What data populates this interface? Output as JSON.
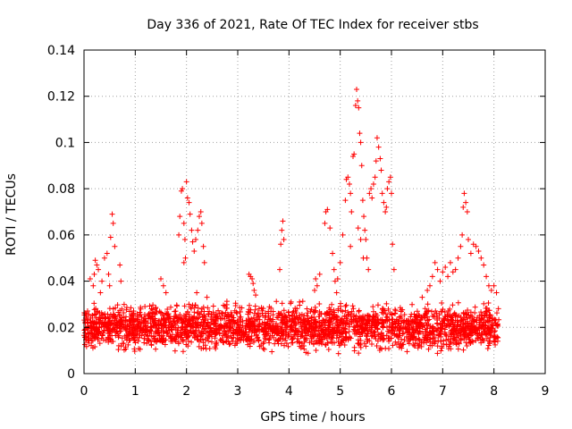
{
  "chart_data": {
    "type": "scatter",
    "title": "Day 336 of 2021, Rate Of TEC Index for receiver stbs",
    "xlabel": "GPS time / hours",
    "ylabel": "ROTI / TECUs",
    "xlim": [
      0,
      9
    ],
    "ylim": [
      0,
      0.14
    ],
    "x_ticks": [
      "0",
      "1",
      "2",
      "3",
      "4",
      "5",
      "6",
      "7",
      "8",
      "9"
    ],
    "y_ticks": [
      "0",
      "0.02",
      "0.04",
      "0.06",
      "0.08",
      "0.1",
      "0.12",
      "0.14"
    ],
    "grid": true,
    "marker": "+",
    "series": [
      {
        "name": "ROTI",
        "color": "#ff0000",
        "x_range": [
          0.0,
          8.1
        ],
        "baseline": [
          0.007,
          0.033
        ],
        "points": [
          {
            "x": 0.12,
            "y": 0.041
          },
          {
            "x": 0.18,
            "y": 0.038
          },
          {
            "x": 0.2,
            "y": 0.043
          },
          {
            "x": 0.22,
            "y": 0.049
          },
          {
            "x": 0.25,
            "y": 0.047
          },
          {
            "x": 0.28,
            "y": 0.045
          },
          {
            "x": 0.32,
            "y": 0.035
          },
          {
            "x": 0.35,
            "y": 0.04
          },
          {
            "x": 0.4,
            "y": 0.05
          },
          {
            "x": 0.45,
            "y": 0.052
          },
          {
            "x": 0.48,
            "y": 0.043
          },
          {
            "x": 0.5,
            "y": 0.038
          },
          {
            "x": 0.52,
            "y": 0.059
          },
          {
            "x": 0.55,
            "y": 0.069
          },
          {
            "x": 0.57,
            "y": 0.065
          },
          {
            "x": 0.6,
            "y": 0.055
          },
          {
            "x": 0.7,
            "y": 0.047
          },
          {
            "x": 0.72,
            "y": 0.04
          },
          {
            "x": 1.5,
            "y": 0.041
          },
          {
            "x": 1.55,
            "y": 0.038
          },
          {
            "x": 1.6,
            "y": 0.035
          },
          {
            "x": 1.85,
            "y": 0.06
          },
          {
            "x": 1.87,
            "y": 0.068
          },
          {
            "x": 1.9,
            "y": 0.079
          },
          {
            "x": 1.92,
            "y": 0.08
          },
          {
            "x": 1.95,
            "y": 0.065
          },
          {
            "x": 1.97,
            "y": 0.058
          },
          {
            "x": 2.0,
            "y": 0.083
          },
          {
            "x": 2.02,
            "y": 0.076
          },
          {
            "x": 2.05,
            "y": 0.074
          },
          {
            "x": 2.07,
            "y": 0.069
          },
          {
            "x": 2.1,
            "y": 0.062
          },
          {
            "x": 2.12,
            "y": 0.057
          },
          {
            "x": 1.95,
            "y": 0.048
          },
          {
            "x": 1.98,
            "y": 0.05
          },
          {
            "x": 2.15,
            "y": 0.053
          },
          {
            "x": 2.18,
            "y": 0.058
          },
          {
            "x": 2.22,
            "y": 0.062
          },
          {
            "x": 2.25,
            "y": 0.068
          },
          {
            "x": 2.28,
            "y": 0.07
          },
          {
            "x": 2.3,
            "y": 0.065
          },
          {
            "x": 2.33,
            "y": 0.055
          },
          {
            "x": 2.35,
            "y": 0.048
          },
          {
            "x": 2.2,
            "y": 0.035
          },
          {
            "x": 2.4,
            "y": 0.033
          },
          {
            "x": 3.22,
            "y": 0.043
          },
          {
            "x": 3.25,
            "y": 0.042
          },
          {
            "x": 3.28,
            "y": 0.041
          },
          {
            "x": 3.3,
            "y": 0.039
          },
          {
            "x": 3.32,
            "y": 0.036
          },
          {
            "x": 3.35,
            "y": 0.034
          },
          {
            "x": 3.82,
            "y": 0.045
          },
          {
            "x": 3.84,
            "y": 0.056
          },
          {
            "x": 3.86,
            "y": 0.062
          },
          {
            "x": 3.88,
            "y": 0.066
          },
          {
            "x": 3.9,
            "y": 0.058
          },
          {
            "x": 4.5,
            "y": 0.036
          },
          {
            "x": 4.52,
            "y": 0.041
          },
          {
            "x": 4.55,
            "y": 0.038
          },
          {
            "x": 4.6,
            "y": 0.043
          },
          {
            "x": 4.7,
            "y": 0.065
          },
          {
            "x": 4.72,
            "y": 0.07
          },
          {
            "x": 4.75,
            "y": 0.071
          },
          {
            "x": 4.8,
            "y": 0.063
          },
          {
            "x": 4.85,
            "y": 0.052
          },
          {
            "x": 4.88,
            "y": 0.045
          },
          {
            "x": 4.9,
            "y": 0.04
          },
          {
            "x": 4.93,
            "y": 0.035
          },
          {
            "x": 4.95,
            "y": 0.041
          },
          {
            "x": 5.0,
            "y": 0.048
          },
          {
            "x": 5.05,
            "y": 0.06
          },
          {
            "x": 5.1,
            "y": 0.075
          },
          {
            "x": 5.12,
            "y": 0.084
          },
          {
            "x": 5.15,
            "y": 0.085
          },
          {
            "x": 5.18,
            "y": 0.082
          },
          {
            "x": 5.2,
            "y": 0.078
          },
          {
            "x": 5.22,
            "y": 0.07
          },
          {
            "x": 5.25,
            "y": 0.094
          },
          {
            "x": 5.27,
            "y": 0.095
          },
          {
            "x": 5.3,
            "y": 0.116
          },
          {
            "x": 5.32,
            "y": 0.123
          },
          {
            "x": 5.34,
            "y": 0.118
          },
          {
            "x": 5.36,
            "y": 0.115
          },
          {
            "x": 5.38,
            "y": 0.104
          },
          {
            "x": 5.4,
            "y": 0.1
          },
          {
            "x": 5.42,
            "y": 0.09
          },
          {
            "x": 5.44,
            "y": 0.075
          },
          {
            "x": 5.46,
            "y": 0.068
          },
          {
            "x": 5.48,
            "y": 0.062
          },
          {
            "x": 5.5,
            "y": 0.058
          },
          {
            "x": 5.52,
            "y": 0.05
          },
          {
            "x": 5.55,
            "y": 0.045
          },
          {
            "x": 5.57,
            "y": 0.078
          },
          {
            "x": 5.6,
            "y": 0.08
          },
          {
            "x": 5.62,
            "y": 0.076
          },
          {
            "x": 5.65,
            "y": 0.082
          },
          {
            "x": 5.68,
            "y": 0.085
          },
          {
            "x": 5.7,
            "y": 0.092
          },
          {
            "x": 5.72,
            "y": 0.102
          },
          {
            "x": 5.75,
            "y": 0.098
          },
          {
            "x": 5.78,
            "y": 0.093
          },
          {
            "x": 5.8,
            "y": 0.088
          },
          {
            "x": 5.82,
            "y": 0.078
          },
          {
            "x": 5.85,
            "y": 0.074
          },
          {
            "x": 5.88,
            "y": 0.07
          },
          {
            "x": 5.9,
            "y": 0.072
          },
          {
            "x": 5.92,
            "y": 0.08
          },
          {
            "x": 5.95,
            "y": 0.083
          },
          {
            "x": 5.98,
            "y": 0.085
          },
          {
            "x": 6.0,
            "y": 0.078
          },
          {
            "x": 6.02,
            "y": 0.056
          },
          {
            "x": 6.05,
            "y": 0.045
          },
          {
            "x": 5.35,
            "y": 0.063
          },
          {
            "x": 5.4,
            "y": 0.058
          },
          {
            "x": 5.45,
            "y": 0.05
          },
          {
            "x": 5.2,
            "y": 0.055
          },
          {
            "x": 6.7,
            "y": 0.036
          },
          {
            "x": 6.75,
            "y": 0.038
          },
          {
            "x": 6.8,
            "y": 0.042
          },
          {
            "x": 6.85,
            "y": 0.048
          },
          {
            "x": 6.9,
            "y": 0.045
          },
          {
            "x": 6.95,
            "y": 0.04
          },
          {
            "x": 7.0,
            "y": 0.044
          },
          {
            "x": 7.05,
            "y": 0.046
          },
          {
            "x": 7.1,
            "y": 0.042
          },
          {
            "x": 7.15,
            "y": 0.048
          },
          {
            "x": 7.2,
            "y": 0.044
          },
          {
            "x": 7.25,
            "y": 0.045
          },
          {
            "x": 7.3,
            "y": 0.05
          },
          {
            "x": 7.35,
            "y": 0.055
          },
          {
            "x": 7.38,
            "y": 0.06
          },
          {
            "x": 7.4,
            "y": 0.072
          },
          {
            "x": 7.42,
            "y": 0.078
          },
          {
            "x": 7.45,
            "y": 0.074
          },
          {
            "x": 7.48,
            "y": 0.07
          },
          {
            "x": 7.5,
            "y": 0.058
          },
          {
            "x": 7.55,
            "y": 0.052
          },
          {
            "x": 7.6,
            "y": 0.056
          },
          {
            "x": 7.65,
            "y": 0.055
          },
          {
            "x": 7.7,
            "y": 0.053
          },
          {
            "x": 7.75,
            "y": 0.05
          },
          {
            "x": 7.8,
            "y": 0.047
          },
          {
            "x": 7.85,
            "y": 0.042
          },
          {
            "x": 7.9,
            "y": 0.038
          },
          {
            "x": 7.95,
            "y": 0.036
          },
          {
            "x": 8.0,
            "y": 0.038
          },
          {
            "x": 8.05,
            "y": 0.035
          },
          {
            "x": 6.6,
            "y": 0.033
          }
        ]
      }
    ]
  }
}
